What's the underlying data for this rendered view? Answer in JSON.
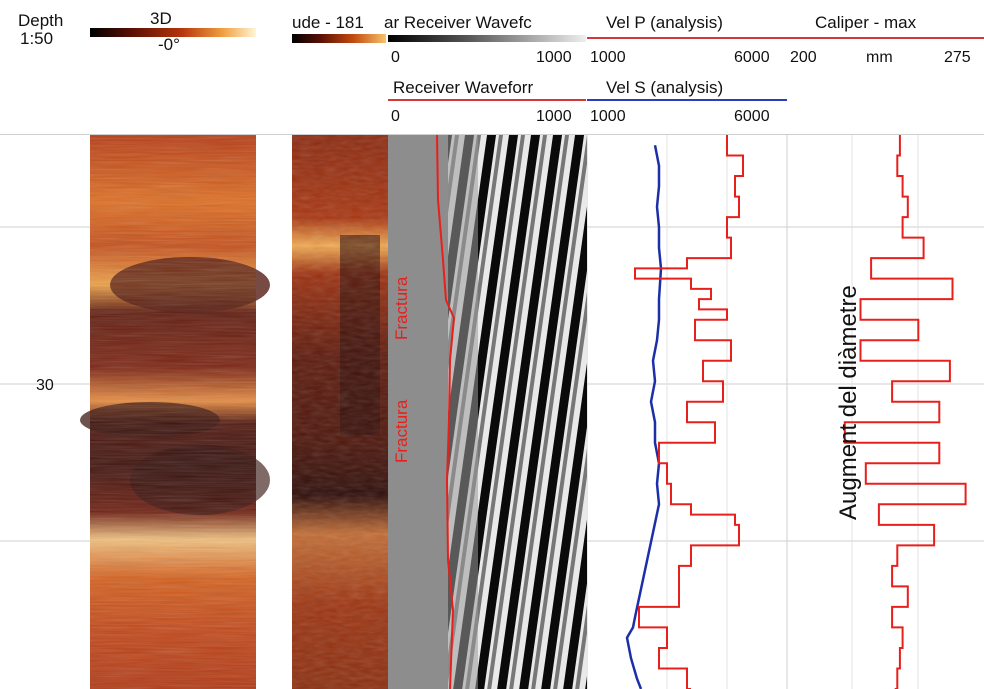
{
  "header": {
    "depth_label": "Depth",
    "scale_label": "1:50",
    "image1_title": "3D",
    "image1_sub": "-0°",
    "image2_title": "ude - 181",
    "waveform1_title": "ar Receiver Wavefc",
    "waveform1_min": "0",
    "waveform1_max": "1000",
    "waveform2_title": "Receiver Waveforr",
    "waveform2_min": "0",
    "waveform2_max": "1000",
    "velp_title": "Vel P (analysis)",
    "velp_min": "1000",
    "velp_max": "6000",
    "vels_title": "Vel S (analysis)",
    "vels_min": "1000",
    "vels_max": "6000",
    "caliper_title": "Caliper - max",
    "caliper_min": "200",
    "caliper_unit": "mm",
    "caliper_max": "275"
  },
  "annotations": {
    "fracture_1": "Fractura",
    "fracture_2": "Fractura",
    "diameter_note": "Augment del diàmetre"
  },
  "colors": {
    "red_curve": "#e8201c",
    "blue_curve": "#1c2fa8",
    "heat_dark": "#3a0a04",
    "heat_mid": "#c2410c",
    "heat_light": "#fde68a",
    "gray_panel": "#8d8d8d"
  },
  "chart_data": {
    "type": "line",
    "y_axis": {
      "label": "Depth",
      "ticks": [
        "30"
      ],
      "range": [
        27.2,
        32.6
      ],
      "inverted": true
    },
    "tracks": [
      {
        "name": "Vel P (analysis)",
        "x_range": [
          1000,
          6000
        ],
        "series": [
          {
            "name": "Vel P (analysis)",
            "color": "red",
            "depth": [
              27.2,
              27.4,
              27.6,
              27.8,
              28.0,
              28.2,
              28.4,
              28.5,
              28.6,
              28.7,
              28.8,
              28.9,
              29.0,
              29.2,
              29.4,
              29.6,
              29.8,
              30.0,
              30.2,
              30.4,
              30.6,
              30.8,
              30.9,
              31.0,
              31.2,
              31.4,
              31.6,
              31.8,
              32.0,
              32.2,
              32.4,
              32.6
            ],
            "values": [
              4500,
              4900,
              4700,
              4800,
              4500,
              4600,
              3500,
              2200,
              3600,
              4100,
              3800,
              4500,
              3700,
              4600,
              3900,
              4400,
              3500,
              4200,
              2800,
              3000,
              3100,
              3600,
              4700,
              4800,
              3600,
              3300,
              3300,
              2300,
              3000,
              2800,
              3500,
              3600
            ]
          }
        ]
      },
      {
        "name": "Vel S (analysis)",
        "x_range": [
          1000,
          6000
        ],
        "series": [
          {
            "name": "Vel S (analysis)",
            "color": "blue",
            "depth": [
              27.3,
              27.5,
              27.7,
              27.9,
              28.1,
              28.3,
              28.5,
              28.8,
              29.0,
              29.2,
              29.4,
              29.6,
              29.8,
              30.0,
              30.2,
              30.4,
              30.6,
              30.8,
              31.9,
              32.0,
              32.1,
              32.3,
              32.5,
              32.6
            ],
            "values": [
              2700,
              2800,
              2800,
              2750,
              2800,
              2800,
              2850,
              2800,
              2800,
              2750,
              2650,
              2700,
              2600,
              2700,
              2700,
              2800,
              2750,
              2800,
              2200,
              2150,
              2000,
              2100,
              2250,
              2350
            ]
          }
        ]
      },
      {
        "name": "Caliper - max",
        "x_range": [
          200,
          275
        ],
        "unit": "mm",
        "series": [
          {
            "name": "Caliper - max",
            "color": "red",
            "depth": [
              27.2,
              27.4,
              27.6,
              27.8,
              28.0,
              28.2,
              28.4,
              28.6,
              28.8,
              29.0,
              29.2,
              29.4,
              29.6,
              29.8,
              30.0,
              30.2,
              30.4,
              30.6,
              30.8,
              31.0,
              31.2,
              31.4,
              31.6,
              31.8,
              32.0,
              32.2,
              32.4,
              32.6
            ],
            "values": [
              243,
              242,
              244,
              246,
              244,
              252,
              232,
              263,
              228,
              250,
              228,
              262,
              240,
              258,
              222,
              258,
              230,
              268,
              235,
              256,
              242,
              240,
              246,
              240,
              244,
              243,
              242,
              241
            ]
          }
        ]
      }
    ]
  }
}
